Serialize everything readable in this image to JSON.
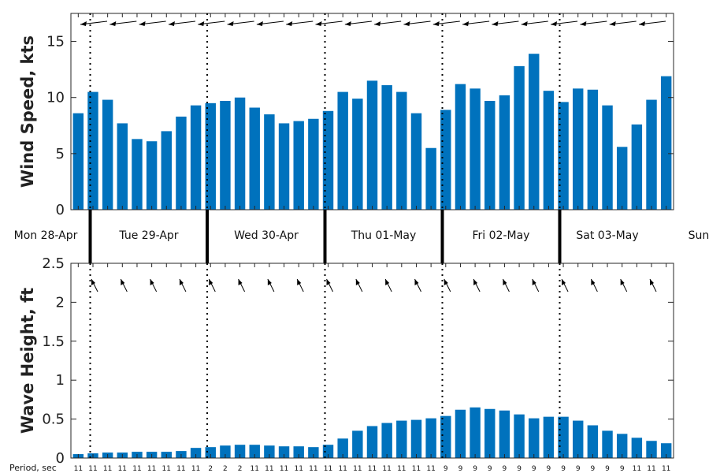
{
  "chart_data": [
    {
      "type": "bar",
      "ylabel": "Wind Speed, kts",
      "ylim": [
        0,
        17.5
      ],
      "yticks": [
        0,
        5,
        10,
        15
      ],
      "bar_color": "#0072BD",
      "direction_marker": "wind-arrows",
      "values": [
        8.6,
        10.5,
        9.8,
        7.7,
        6.3,
        6.1,
        7.0,
        8.3,
        9.3,
        9.5,
        9.7,
        10.0,
        9.1,
        8.5,
        7.7,
        7.9,
        8.1,
        8.8,
        10.5,
        9.9,
        11.5,
        11.1,
        10.5,
        8.6,
        5.5,
        8.9,
        11.2,
        10.8,
        9.7,
        10.2,
        12.8,
        13.9,
        10.6,
        9.6,
        10.8,
        10.7,
        9.3,
        5.6,
        7.6,
        9.8,
        11.9
      ]
    },
    {
      "type": "bar",
      "ylabel": "Wave Height, ft",
      "ylim": [
        0,
        2.5
      ],
      "yticks": [
        "0",
        "0.5",
        "1",
        "1.5",
        "2",
        "2.5"
      ],
      "bar_color": "#0072BD",
      "direction_marker": "wave-arrows",
      "values": [
        0.05,
        0.06,
        0.07,
        0.07,
        0.08,
        0.08,
        0.08,
        0.09,
        0.13,
        0.14,
        0.16,
        0.17,
        0.17,
        0.16,
        0.15,
        0.15,
        0.14,
        0.17,
        0.25,
        0.35,
        0.41,
        0.45,
        0.48,
        0.49,
        0.51,
        0.54,
        0.62,
        0.65,
        0.63,
        0.61,
        0.56,
        0.51,
        0.53,
        0.53,
        0.48,
        0.42,
        0.35,
        0.31,
        0.26,
        0.22,
        0.19
      ],
      "period_label": "Period, sec",
      "periods": [
        "11",
        "11",
        "11",
        "11",
        "11",
        "11",
        "11",
        "11",
        "11",
        "2",
        "2",
        "2",
        "11",
        "11",
        "11",
        "11",
        "11",
        "11",
        "11",
        "11",
        "11",
        "11",
        "11",
        "11",
        "11",
        "9",
        "9",
        "9",
        "9",
        "9",
        "9",
        "9",
        "9",
        "9",
        "9",
        "9",
        "9",
        "9",
        "11",
        "11",
        "11"
      ]
    }
  ],
  "days": [
    "Mon 28-Apr",
    "Tue 29-Apr",
    "Wed 30-Apr",
    "Thu 01-May",
    "Fri 02-May",
    "Sat 03-May",
    "Sun"
  ]
}
